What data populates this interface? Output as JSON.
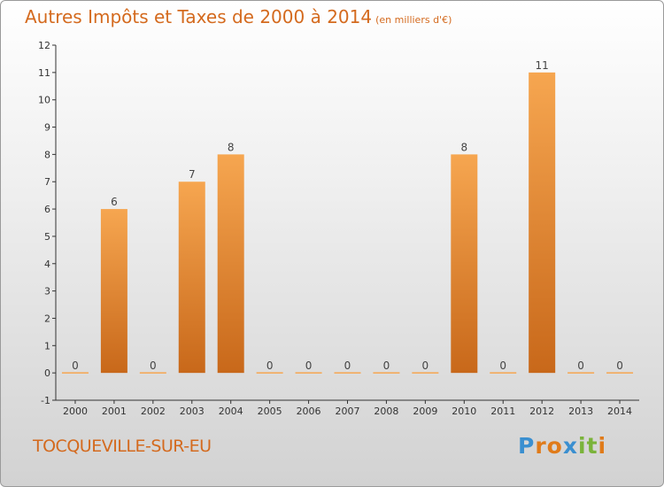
{
  "header": {
    "title": "Autres Impôts et Taxes de 2000 à 2014",
    "unit": "(en milliers d'€)"
  },
  "footer": {
    "commune": "TOCQUEVILLE-SUR-EU",
    "logo_letters": [
      "P",
      "r",
      "o",
      "x",
      "i",
      "t",
      "i"
    ]
  },
  "colors": {
    "title": "#d46a1e",
    "bar_light": "#f6a650",
    "bar_dark": "#c8681a",
    "logo": [
      "#3a8fd0",
      "#e07b1a",
      "#e07b1a",
      "#3a8fd0",
      "#7ab33a",
      "#7ab33a",
      "#e07b1a"
    ]
  },
  "chart_data": {
    "type": "bar",
    "categories": [
      "2000",
      "2001",
      "2002",
      "2003",
      "2004",
      "2005",
      "2006",
      "2007",
      "2008",
      "2009",
      "2010",
      "2011",
      "2012",
      "2013",
      "2014"
    ],
    "values": [
      0,
      6,
      0,
      7,
      8,
      0,
      0,
      0,
      0,
      0,
      8,
      0,
      11,
      0,
      0
    ],
    "ylim": [
      -1,
      12
    ],
    "yticks": [
      -1,
      0,
      1,
      2,
      3,
      4,
      5,
      6,
      7,
      8,
      9,
      10,
      11,
      12
    ],
    "grid": false,
    "data_labels": true
  }
}
